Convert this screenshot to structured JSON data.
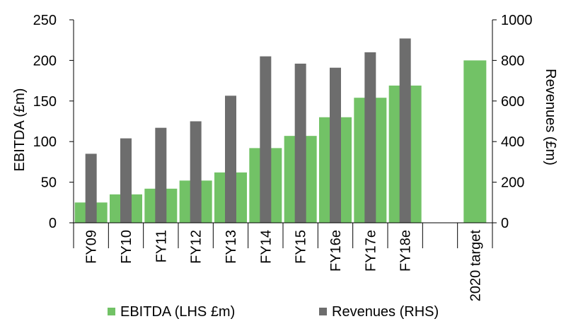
{
  "chart_data": {
    "type": "bar",
    "categories": [
      "FY09",
      "FY10",
      "FY11",
      "FY12",
      "FY13",
      "FY14",
      "FY15",
      "FY16e",
      "FY17e",
      "FY18e",
      "",
      "2020 target"
    ],
    "series": [
      {
        "name": "EBITDA (LHS £m)",
        "axis": "left",
        "color": "#72c266",
        "values": [
          25,
          35,
          42,
          52,
          62,
          92,
          107,
          130,
          154,
          169,
          null,
          200
        ]
      },
      {
        "name": "Revenues (RHS)",
        "axis": "right",
        "color": "#6d6d6d",
        "values": [
          340,
          416,
          468,
          500,
          626,
          820,
          784,
          764,
          840,
          908,
          null,
          null
        ]
      }
    ],
    "ylabel": "EBITDA (£m)",
    "y2label": "Revenues (£m)",
    "ylim": [
      0,
      250
    ],
    "y2lim": [
      0,
      1000
    ],
    "yticks": [
      "0",
      "50",
      "100",
      "150",
      "200",
      "250"
    ],
    "y2ticks": [
      "0",
      "200",
      "400",
      "600",
      "800",
      "1000"
    ],
    "grid": false,
    "legend": "bottom"
  }
}
